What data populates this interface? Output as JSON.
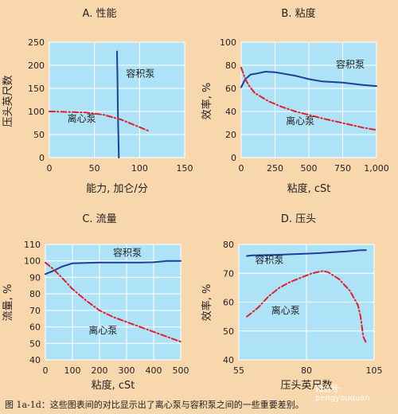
{
  "caption": "图 1a-1d：这些图表间的对比显示出了离心泵与容积泵之间的一些重要差别。",
  "watermark": "微信号: pengyouquan",
  "colors": {
    "plot_bg": "#aee3f7",
    "blue": "#1c3f9b",
    "red": "#e0202a"
  },
  "chart_data": [
    {
      "id": "a",
      "type": "line",
      "title": "A. 性能",
      "xlabel": "能力, 加仑/分",
      "ylabel": "压头英尺数",
      "xlim": [
        0,
        150
      ],
      "ylim": [
        0,
        250
      ],
      "xticks": [
        0,
        50,
        100,
        150
      ],
      "yticks": [
        0,
        50,
        100,
        150,
        200,
        250
      ],
      "xticklabels": [
        "0",
        "50",
        "100",
        "150"
      ],
      "yticklabels": [
        "0",
        "50",
        "100",
        "150",
        "200",
        "250"
      ],
      "series": [
        {
          "name": "容积泵",
          "style": "solid",
          "color": "#1c3f9b",
          "points": [
            [
              75,
              230
            ],
            [
              75.5,
              170
            ],
            [
              76,
              100
            ],
            [
              76.5,
              50
            ],
            [
              77,
              0
            ]
          ]
        },
        {
          "name": "离心泵",
          "style": "dashdot",
          "color": "#e0202a",
          "points": [
            [
              0,
              100
            ],
            [
              20,
              99
            ],
            [
              40,
              98
            ],
            [
              60,
              93
            ],
            [
              80,
              82
            ],
            [
              100,
              66
            ],
            [
              110,
              58
            ]
          ]
        }
      ],
      "annotations": [
        {
          "text": "容积泵",
          "x": 85,
          "y": 175
        },
        {
          "text": "离心泵",
          "x": 20,
          "y": 78
        }
      ]
    },
    {
      "id": "b",
      "type": "line",
      "title": "B. 粘度",
      "xlabel": "粘度, cSt",
      "ylabel": "效率, %",
      "xlim": [
        0,
        1000
      ],
      "ylim": [
        0,
        100
      ],
      "xticks": [
        0,
        250,
        500,
        750,
        1000
      ],
      "yticks": [
        0,
        20,
        40,
        60,
        80,
        100
      ],
      "xticklabels": [
        "0",
        "250",
        "500",
        "750",
        "1,000"
      ],
      "yticklabels": [
        "0",
        "20",
        "40",
        "60",
        "80",
        "100"
      ],
      "series": [
        {
          "name": "容积泵",
          "style": "solid",
          "color": "#1c3f9b",
          "points": [
            [
              0,
              61
            ],
            [
              30,
              68
            ],
            [
              70,
              72
            ],
            [
              120,
              73
            ],
            [
              180,
              74.5
            ],
            [
              250,
              74
            ],
            [
              400,
              71
            ],
            [
              500,
              68
            ],
            [
              600,
              66
            ],
            [
              750,
              65
            ],
            [
              900,
              63
            ],
            [
              1000,
              62
            ]
          ]
        },
        {
          "name": "离心泵",
          "style": "dashdot",
          "color": "#e0202a",
          "points": [
            [
              0,
              78
            ],
            [
              30,
              68
            ],
            [
              60,
              62
            ],
            [
              100,
              56
            ],
            [
              200,
              49
            ],
            [
              300,
              44
            ],
            [
              400,
              40
            ],
            [
              500,
              37
            ],
            [
              600,
              34
            ],
            [
              750,
              30
            ],
            [
              900,
              26
            ],
            [
              1000,
              24
            ]
          ]
        }
      ],
      "annotations": [
        {
          "text": "容积泵",
          "x": 700,
          "y": 78
        },
        {
          "text": "离心泵",
          "x": 330,
          "y": 29
        }
      ]
    },
    {
      "id": "c",
      "type": "line",
      "title": "C. 流量",
      "xlabel": "粘度, cSt",
      "ylabel": "流量, %",
      "xlim": [
        0,
        500
      ],
      "ylim": [
        40,
        110
      ],
      "xticks": [
        0,
        100,
        200,
        300,
        400,
        500
      ],
      "yticks": [
        40,
        50,
        60,
        70,
        80,
        90,
        100,
        110
      ],
      "xticklabels": [
        "0",
        "100",
        "200",
        "300",
        "400",
        "500"
      ],
      "yticklabels": [
        "40",
        "50",
        "60",
        "70",
        "80",
        "90",
        "100",
        "110"
      ],
      "series": [
        {
          "name": "容积泵",
          "style": "solid",
          "color": "#1c3f9b",
          "points": [
            [
              0,
              92
            ],
            [
              30,
              94
            ],
            [
              60,
              96.5
            ],
            [
              100,
              98.5
            ],
            [
              150,
              98.8
            ],
            [
              200,
              99
            ],
            [
              250,
              99
            ],
            [
              300,
              99
            ],
            [
              350,
              99
            ],
            [
              400,
              99.2
            ],
            [
              450,
              100
            ],
            [
              500,
              100
            ]
          ]
        },
        {
          "name": "离心泵",
          "style": "dashdot",
          "color": "#e0202a",
          "points": [
            [
              0,
              99
            ],
            [
              30,
              95
            ],
            [
              60,
              90
            ],
            [
              100,
              83
            ],
            [
              150,
              76
            ],
            [
              200,
              70
            ],
            [
              250,
              66
            ],
            [
              300,
              63
            ],
            [
              350,
              60
            ],
            [
              400,
              57
            ],
            [
              450,
              54
            ],
            [
              500,
              51
            ]
          ]
        }
      ],
      "annotations": [
        {
          "text": "容积泵",
          "x": 250,
          "y": 103
        },
        {
          "text": "离心泵",
          "x": 160,
          "y": 56
        }
      ]
    },
    {
      "id": "d",
      "type": "line",
      "title": "D. 压头",
      "xlabel": "压头英尺数",
      "ylabel": "效率, %",
      "xlim": [
        55,
        105
      ],
      "ylim": [
        40,
        80
      ],
      "xticks": [
        55,
        80,
        105
      ],
      "yticks": [
        40,
        50,
        60,
        70,
        80
      ],
      "xticklabels": [
        "55",
        "80",
        "105"
      ],
      "yticklabels": [
        "40",
        "50",
        "60",
        "70",
        "80"
      ],
      "series": [
        {
          "name": "容积泵",
          "style": "solid",
          "color": "#1c3f9b",
          "points": [
            [
              58,
              76
            ],
            [
              60,
              76.2
            ],
            [
              65,
              76.3
            ],
            [
              70,
              76.4
            ],
            [
              75,
              76.6
            ],
            [
              80,
              76.8
            ],
            [
              85,
              77
            ],
            [
              90,
              77.3
            ],
            [
              95,
              77.6
            ],
            [
              100,
              78
            ],
            [
              102,
              78
            ]
          ]
        },
        {
          "name": "离心泵",
          "style": "dashdot",
          "color": "#e0202a",
          "points": [
            [
              58,
              55
            ],
            [
              62,
              58
            ],
            [
              66,
              62
            ],
            [
              70,
              65
            ],
            [
              74,
              67
            ],
            [
              78,
              68.5
            ],
            [
              82,
              70
            ],
            [
              86,
              70.8
            ],
            [
              88,
              70.4
            ],
            [
              92,
              68
            ],
            [
              96,
              64
            ],
            [
              99,
              59
            ],
            [
              100,
              55
            ],
            [
              101,
              48
            ],
            [
              102,
              46
            ]
          ]
        }
      ],
      "annotations": [
        {
          "text": "容积泵",
          "x": 61,
          "y": 73.5
        },
        {
          "text": "离心泵",
          "x": 67,
          "y": 56
        }
      ]
    }
  ]
}
